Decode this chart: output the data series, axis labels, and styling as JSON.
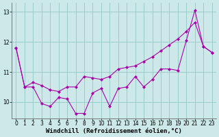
{
  "xlabel": "Windchill (Refroidissement éolien,°C)",
  "bg_color": "#cce8e8",
  "line_color": "#aa00aa",
  "grid_color": "#99cccc",
  "xlim": [
    -0.5,
    23.5
  ],
  "ylim": [
    9.45,
    13.3
  ],
  "yticks": [
    10,
    11,
    12,
    13
  ],
  "xticks": [
    0,
    1,
    2,
    3,
    4,
    5,
    6,
    7,
    8,
    9,
    10,
    11,
    12,
    13,
    14,
    15,
    16,
    17,
    18,
    19,
    20,
    21,
    22,
    23
  ],
  "line1_x": [
    0,
    1,
    2,
    3,
    4,
    5,
    6,
    7,
    8,
    9,
    10,
    11,
    12,
    13,
    14,
    15,
    16,
    17,
    18,
    19,
    20,
    21,
    22,
    23
  ],
  "line1_y": [
    11.8,
    10.5,
    10.5,
    9.95,
    9.85,
    10.15,
    10.1,
    9.62,
    9.62,
    10.3,
    10.45,
    9.85,
    10.45,
    10.5,
    10.85,
    10.5,
    10.75,
    11.1,
    11.1,
    11.05,
    12.05,
    13.05,
    11.85,
    11.65
  ],
  "line2_x": [
    0,
    1,
    2,
    3,
    4,
    5,
    6,
    7,
    8,
    9,
    10,
    11,
    12,
    13,
    14,
    15,
    16,
    17,
    18,
    19,
    20,
    21,
    22,
    23
  ],
  "line2_y": [
    11.8,
    10.5,
    10.65,
    10.55,
    10.4,
    10.35,
    10.5,
    10.5,
    10.85,
    10.8,
    10.75,
    10.85,
    11.1,
    11.15,
    11.2,
    11.35,
    11.5,
    11.7,
    11.9,
    12.1,
    12.35,
    12.65,
    11.85,
    11.65
  ],
  "tick_fontsize": 5.5,
  "label_fontsize": 6.5
}
